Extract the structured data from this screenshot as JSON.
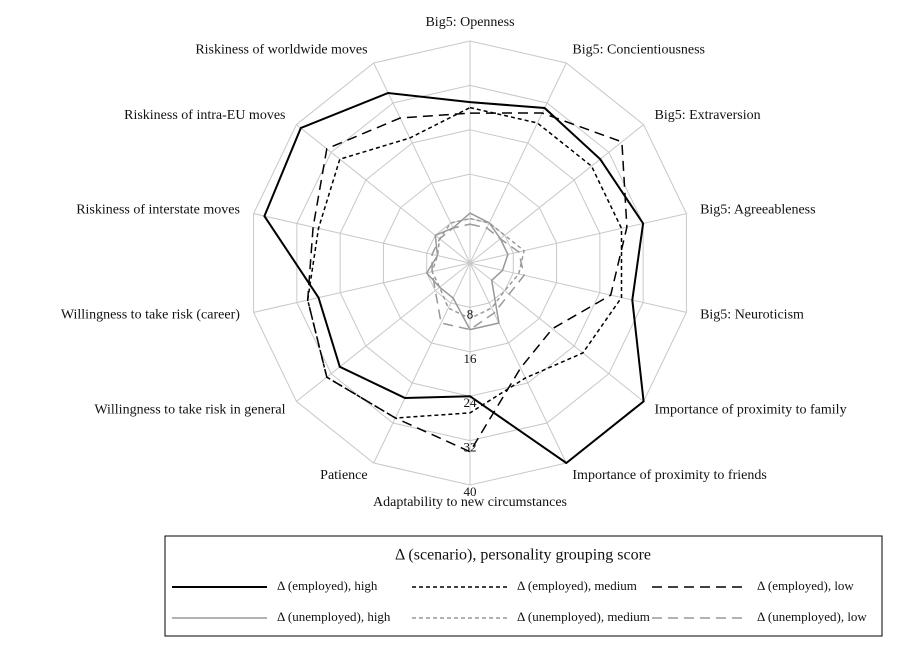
{
  "chart_data": {
    "type": "radar",
    "categories": [
      "Big5: Openness",
      "Big5: Concientiousness",
      "Big5: Extraversion",
      "Big5: Agreeableness",
      "Big5: Neuroticism",
      "Importance of proximity to family",
      "Importance of proximity to friends",
      "Adaptability to new circumstances",
      "Patience",
      "Willingness to take risk in general",
      "Willingness to take risk (career)",
      "Riskiness of interstate moves",
      "Riskiness of intra-EU moves",
      "Riskiness of worldwide moves"
    ],
    "rlim": [
      0,
      40
    ],
    "rticks": [
      8,
      16,
      24,
      32,
      40
    ],
    "grid": true,
    "legend_title": "Δ (scenario), personality grouping score",
    "series": [
      {
        "name": "Δ (employed), high",
        "color": "#000000",
        "style": "solid",
        "values": [
          29,
          31,
          30,
          32,
          30,
          40,
          40,
          24,
          27,
          30,
          28,
          38,
          39,
          34
        ]
      },
      {
        "name": "Δ (employed), medium",
        "color": "#000000",
        "style": "dotted",
        "values": [
          28,
          28,
          28,
          28,
          28,
          26,
          23,
          27,
          31,
          33,
          30,
          28,
          30,
          25
        ]
      },
      {
        "name": "Δ (employed), low",
        "color": "#000000",
        "style": "dashed",
        "values": [
          27,
          30,
          35,
          29,
          26,
          19,
          21,
          34,
          31,
          33,
          30,
          29,
          33,
          29
        ]
      },
      {
        "name": "Δ (unemployed), high",
        "color": "#999999",
        "style": "solid",
        "values": [
          9,
          8,
          7,
          7,
          6,
          5,
          12,
          12,
          7,
          7,
          8,
          6,
          8,
          7
        ]
      },
      {
        "name": "Δ (unemployed), medium",
        "color": "#999999",
        "style": "dotted",
        "values": [
          8,
          8,
          8,
          10,
          9,
          8,
          9,
          10,
          9,
          7,
          7,
          6,
          7,
          8
        ]
      },
      {
        "name": "Δ (unemployed), low",
        "color": "#999999",
        "style": "dashed",
        "values": [
          7,
          7,
          7,
          9,
          10,
          9,
          10,
          12,
          12,
          8,
          7,
          7,
          7,
          7
        ]
      }
    ]
  }
}
